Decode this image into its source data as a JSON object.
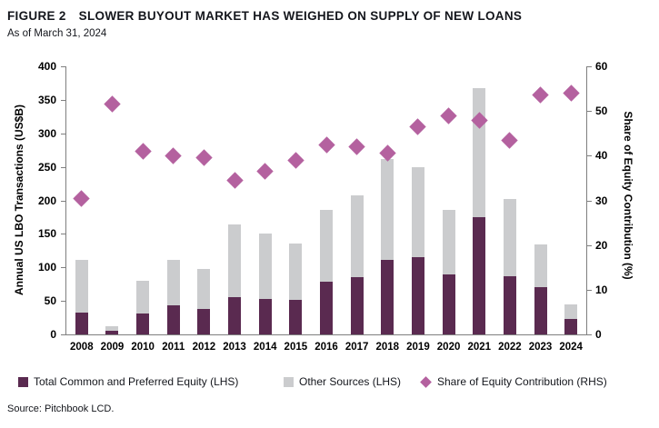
{
  "header": {
    "figure_label": "FIGURE 2",
    "title": "SLOWER BUYOUT MARKET HAS WEIGHED ON SUPPLY OF NEW LOANS",
    "as_of": "As of March 31, 2024"
  },
  "source": "Source: Pitchbook LCD.",
  "chart_data": {
    "type": "bar",
    "subtype": "stacked-bar-with-scatter-overlay",
    "categories": [
      "2008",
      "2009",
      "2010",
      "2011",
      "2012",
      "2013",
      "2014",
      "2015",
      "2016",
      "2017",
      "2018",
      "2019",
      "2020",
      "2021",
      "2022",
      "2023",
      "2024"
    ],
    "series": [
      {
        "name": "Total Common and Preferred Equity (LHS)",
        "type": "bar",
        "axis": "left",
        "color": "#5a2a50",
        "values": [
          33,
          5,
          31,
          43,
          38,
          56,
          53,
          51,
          79,
          86,
          111,
          115,
          90,
          175,
          87,
          70,
          23
        ]
      },
      {
        "name": "Other Sources (LHS)",
        "type": "bar",
        "axis": "left",
        "color": "#cbccce",
        "values": [
          78,
          7,
          49,
          68,
          60,
          108,
          97,
          84,
          107,
          122,
          151,
          135,
          96,
          192,
          115,
          64,
          22
        ]
      },
      {
        "name": "Share of Equity Contribution (RHS)",
        "type": "scatter",
        "marker": "diamond",
        "axis": "right",
        "color": "#b4619f",
        "values": [
          30.5,
          51.5,
          41,
          40,
          39.5,
          34.5,
          36.5,
          39,
          42.5,
          42,
          40.5,
          46.5,
          49,
          48,
          43.5,
          53.5,
          54
        ]
      }
    ],
    "left_axis": {
      "label": "Annual US LBO Transactions (US$B)",
      "min": 0,
      "max": 400,
      "ticks": [
        0,
        50,
        100,
        150,
        200,
        250,
        300,
        350,
        400
      ]
    },
    "right_axis": {
      "label": "Share of Equity Contribution (%)",
      "min": 0,
      "max": 60,
      "ticks": [
        0,
        10,
        20,
        30,
        40,
        50,
        60
      ]
    },
    "grid": false,
    "legend_position": "bottom",
    "axis_line_color": "#7f7f7f"
  }
}
